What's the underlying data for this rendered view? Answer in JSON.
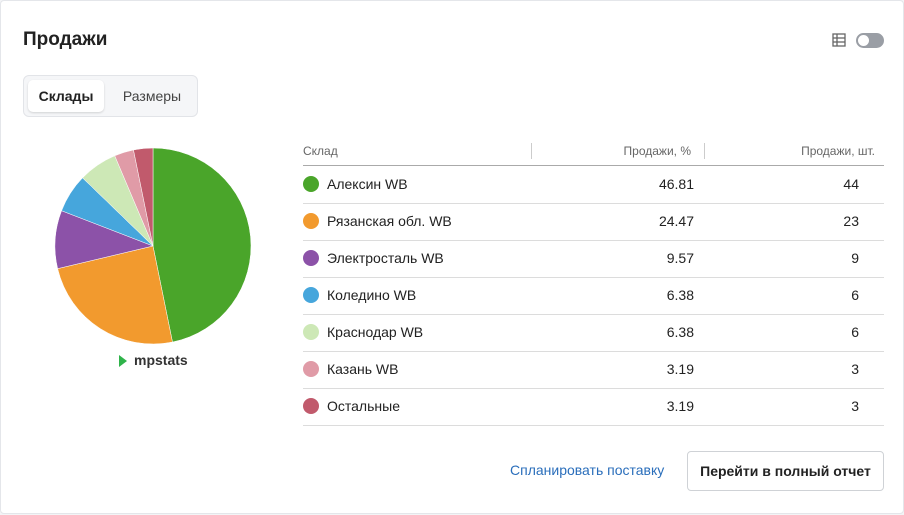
{
  "header": {
    "title": "Продажи"
  },
  "tabs": [
    "Склады",
    "Размеры"
  ],
  "logo": "mpstats",
  "chart_data": {
    "type": "pie",
    "categories": [
      "Алексин WB",
      "Рязанская обл. WB",
      "Электросталь WB",
      "Коледино WB",
      "Краснодар WB",
      "Казань WB",
      "Остальные"
    ],
    "values": [
      46.81,
      24.47,
      9.57,
      6.38,
      6.38,
      3.19,
      3.19
    ],
    "colors": [
      "#4aa52a",
      "#f29a2e",
      "#8c52a8",
      "#46a6dc",
      "#cde8b6",
      "#e09ba7",
      "#c15a6c"
    ]
  },
  "table": {
    "columns": [
      "Склад",
      "Продажи, %",
      "Продажи, шт."
    ],
    "counts": [
      44,
      23,
      9,
      6,
      6,
      3,
      3
    ]
  },
  "actions": {
    "link": "Спланировать поставку",
    "button": "Перейти в полный отчет"
  }
}
